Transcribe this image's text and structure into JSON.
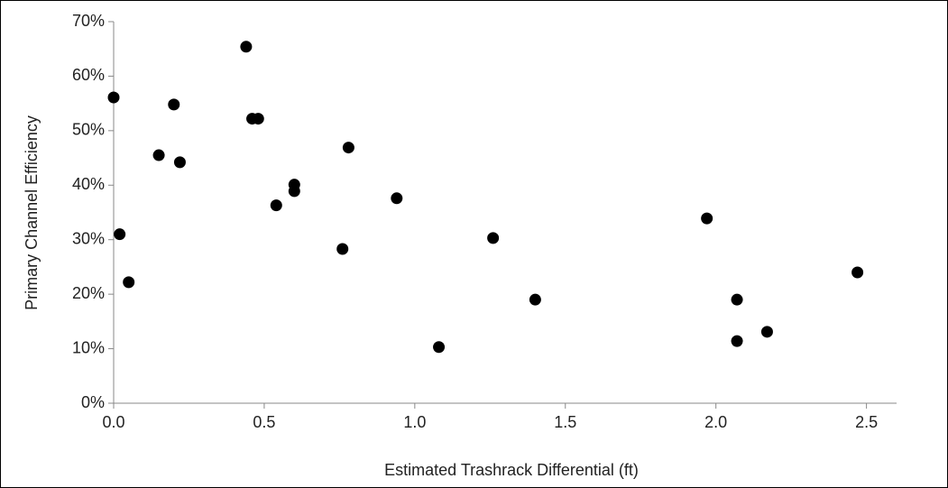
{
  "chart_data": {
    "type": "scatter",
    "x_label": "Estimated Trashrack Differential (ft)",
    "y_label": "Primary Channel Efficiency",
    "color": "#000000",
    "x": [
      0,
      0.02,
      0.05,
      0.15,
      0.2,
      0.22,
      0.44,
      0.46,
      0.48,
      0.54,
      0.6,
      0.6,
      0.76,
      0.78,
      0.94,
      1.08,
      1.26,
      1.4,
      1.97,
      2.07,
      2.07,
      2.17,
      2.47
    ],
    "values": [
      56.1,
      31.0,
      22.2,
      45.5,
      54.8,
      44.2,
      65.4,
      52.2,
      52.2,
      36.3,
      40.1,
      38.9,
      28.3,
      46.9,
      37.6,
      10.3,
      30.3,
      19.0,
      33.9,
      19.0,
      11.4,
      13.1,
      24.0
    ],
    "xlim": [
      0,
      2.6
    ],
    "xticks": [
      {
        "value": 0,
        "label": "0.0"
      },
      0.5,
      {
        "value": 1,
        "label": "1.0"
      },
      1.5,
      {
        "value": 2,
        "label": "2.0"
      },
      2.5
    ],
    "ylim": [
      0,
      70
    ],
    "yticks": [
      {
        "value": 0,
        "label": "0%"
      },
      {
        "value": 10,
        "label": "10%"
      },
      {
        "value": 20,
        "label": "20%"
      },
      {
        "value": 30,
        "label": "30%"
      },
      {
        "value": 40,
        "label": "40%"
      },
      {
        "value": 50,
        "label": "50%"
      },
      {
        "value": 60,
        "label": "60%"
      },
      {
        "value": 70,
        "label": "70%"
      }
    ],
    "grid": false
  }
}
